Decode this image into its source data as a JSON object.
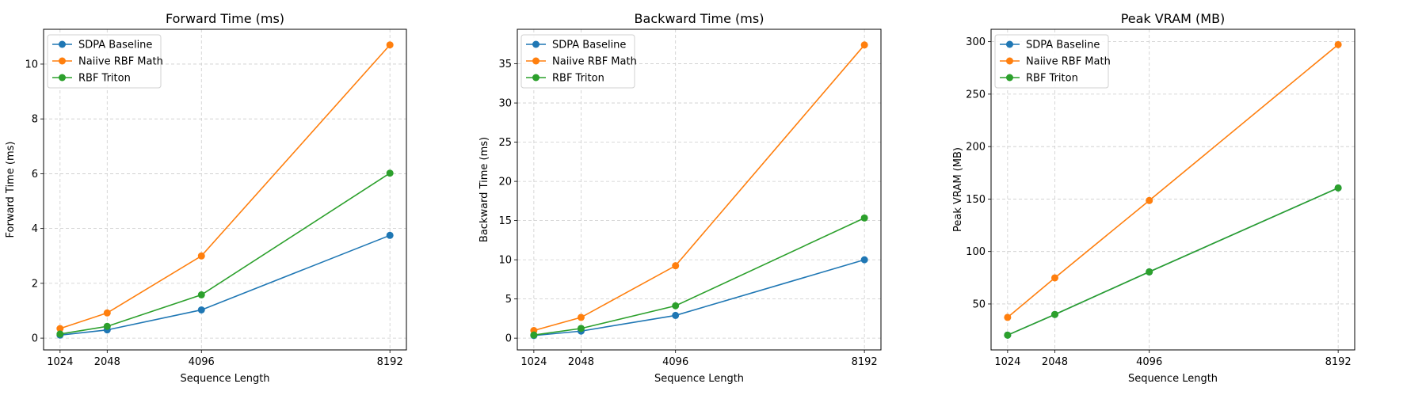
{
  "colors": {
    "SDPA Baseline": "#1f77b4",
    "Naiive RBF Math": "#ff7f0e",
    "RBF Triton": "#2ca02c",
    "grid": "#cccccc"
  },
  "chart_data": [
    {
      "type": "line",
      "title": "Forward Time (ms)",
      "xlabel": "Sequence Length",
      "ylabel": "Forward Time (ms)",
      "x": [
        1024,
        2048,
        4096,
        8192
      ],
      "xticks": [
        "1024",
        "2048",
        "4096",
        "8192"
      ],
      "yticks": [
        "0",
        "2",
        "4",
        "6",
        "8",
        "10"
      ],
      "ylim": [
        -0.43,
        11.27
      ],
      "grid": true,
      "legend": "upper-left",
      "series": [
        {
          "name": "SDPA Baseline",
          "values": [
            0.11,
            0.3,
            1.03,
            3.75
          ]
        },
        {
          "name": "Naiive RBF Math",
          "values": [
            0.35,
            0.92,
            3.0,
            10.7
          ]
        },
        {
          "name": "RBF Triton",
          "values": [
            0.15,
            0.43,
            1.58,
            6.02
          ]
        }
      ]
    },
    {
      "type": "line",
      "title": "Backward Time (ms)",
      "xlabel": "Sequence Length",
      "ylabel": "Backward Time (ms)",
      "x": [
        1024,
        2048,
        4096,
        8192
      ],
      "xticks": [
        "1024",
        "2048",
        "4096",
        "8192"
      ],
      "yticks": [
        "0",
        "5",
        "10",
        "15",
        "20",
        "25",
        "30",
        "35"
      ],
      "ylim": [
        -1.5,
        39.4
      ],
      "grid": true,
      "legend": "upper-left",
      "series": [
        {
          "name": "SDPA Baseline",
          "values": [
            0.33,
            0.9,
            2.9,
            10.0
          ]
        },
        {
          "name": "Naiive RBF Math",
          "values": [
            0.97,
            2.65,
            9.24,
            37.4
          ]
        },
        {
          "name": "RBF Triton",
          "values": [
            0.4,
            1.24,
            4.13,
            15.33
          ]
        }
      ]
    },
    {
      "type": "line",
      "title": "Peak VRAM (MB)",
      "xlabel": "Sequence Length",
      "ylabel": "Peak VRAM (MB)",
      "x": [
        1024,
        2048,
        4096,
        8192
      ],
      "xticks": [
        "1024",
        "2048",
        "4096",
        "8192"
      ],
      "yticks": [
        "50",
        "100",
        "150",
        "200",
        "250",
        "300"
      ],
      "ylim": [
        6.2,
        311.8
      ],
      "grid": true,
      "legend": "upper-left",
      "series": [
        {
          "name": "SDPA Baseline",
          "values": [
            20.3,
            40.0,
            80.6,
            160.6
          ]
        },
        {
          "name": "Naiive RBF Math",
          "values": [
            37.2,
            74.9,
            148.6,
            297.2
          ]
        },
        {
          "name": "RBF Triton",
          "values": [
            20.3,
            40.0,
            80.6,
            160.6
          ]
        }
      ]
    }
  ]
}
